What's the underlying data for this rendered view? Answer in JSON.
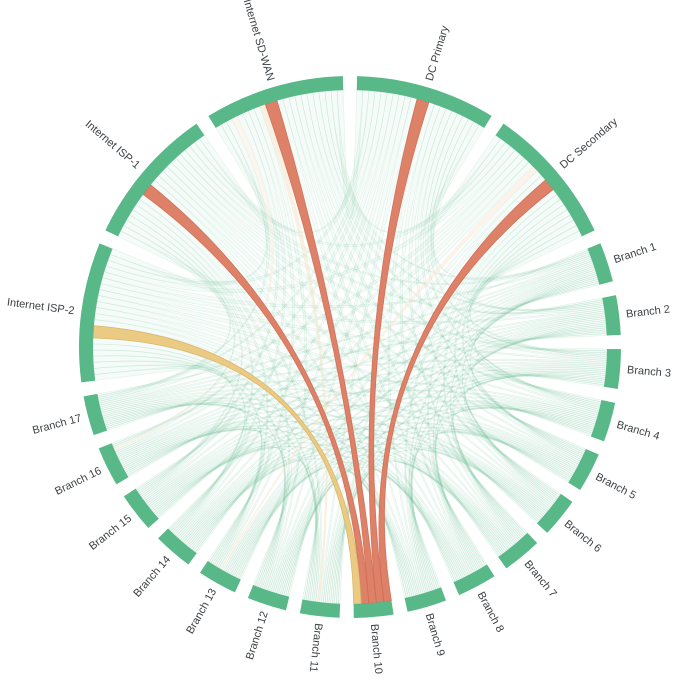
{
  "chart_data": {
    "type": "chord",
    "title": "",
    "nodes": [
      {
        "label": "DC Primary",
        "group": "hub"
      },
      {
        "label": "DC Secondary",
        "group": "hub"
      },
      {
        "label": "Branch 1",
        "group": "branch"
      },
      {
        "label": "Branch 2",
        "group": "branch"
      },
      {
        "label": "Branch 3",
        "group": "branch"
      },
      {
        "label": "Branch 4",
        "group": "branch"
      },
      {
        "label": "Branch 5",
        "group": "branch"
      },
      {
        "label": "Branch 6",
        "group": "branch"
      },
      {
        "label": "Branch 7",
        "group": "branch"
      },
      {
        "label": "Branch 8",
        "group": "branch"
      },
      {
        "label": "Branch 9",
        "group": "branch"
      },
      {
        "label": "Branch 10",
        "group": "branch"
      },
      {
        "label": "Branch 11",
        "group": "branch"
      },
      {
        "label": "Branch 12",
        "group": "branch"
      },
      {
        "label": "Branch 13",
        "group": "branch"
      },
      {
        "label": "Branch 14",
        "group": "branch"
      },
      {
        "label": "Branch 15",
        "group": "branch"
      },
      {
        "label": "Branch 16",
        "group": "branch"
      },
      {
        "label": "Branch 17",
        "group": "branch"
      },
      {
        "label": "Internet ISP-2",
        "group": "hub"
      },
      {
        "label": "Internet ISP-1",
        "group": "hub"
      },
      {
        "label": "Internet SD-WAN",
        "group": "hub"
      }
    ],
    "highlighted_links": [
      {
        "source": "Branch 10",
        "target": "DC Secondary",
        "color": "#dc7a61",
        "edge": "#cf6b52",
        "status": "critical"
      },
      {
        "source": "Branch 10",
        "target": "DC Primary",
        "color": "#dc7a61",
        "edge": "#cf6b52",
        "status": "critical"
      },
      {
        "source": "Branch 10",
        "target": "Internet SD-WAN",
        "color": "#dc7a61",
        "edge": "#cf6b52",
        "status": "critical"
      },
      {
        "source": "Branch 10",
        "target": "Internet ISP-1",
        "color": "#dc7a61",
        "edge": "#cf6b52",
        "status": "critical"
      },
      {
        "source": "Branch 10",
        "target": "Internet ISP-2",
        "color": "#eac87d",
        "edge": "#d8b264",
        "status": "warning"
      }
    ],
    "accent_links": [
      {
        "source": "Internet SD-WAN",
        "target": "Branch 11",
        "color": "#f3e5cb",
        "opacity": 0.55
      },
      {
        "source": "Internet SD-WAN",
        "target": "Branch 16",
        "color": "#f7eedd",
        "opacity": 0.5
      },
      {
        "source": "DC Secondary",
        "target": "Branch 13",
        "color": "#f9e4d3",
        "opacity": 0.45
      }
    ],
    "mesh": {
      "type": "all-pairs",
      "exclude": [
        "Branch 10"
      ],
      "fill": "rgba(88,184,136,0.06)",
      "stroke": "rgba(88,184,136,0.15)",
      "stroke_width": 0.6
    },
    "colors": {
      "arc": "#58b888",
      "label": "#3c4043",
      "background": "#ffffff",
      "critical": "#dc7a61",
      "warning": "#eac87d"
    },
    "layout": {
      "center": [
        350,
        347
      ],
      "outer_radius": 271,
      "inner_radius": 257,
      "chord_radius": 257,
      "label_radius": 278,
      "start_angle_deg": 1.5,
      "hub_arc_deg": 30,
      "branch_arc_deg": 8.47,
      "gap_deg": 3,
      "highlight_slot_weight": 2,
      "label_flip_threshold_deg": 190,
      "label_font_size": 11
    }
  }
}
